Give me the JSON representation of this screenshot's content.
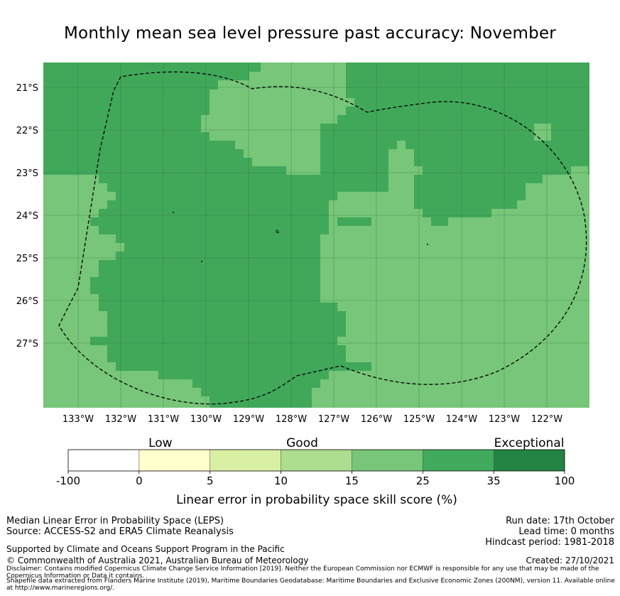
{
  "title": "Monthly mean sea level pressure past accuracy: November",
  "map": {
    "lat_labels": [
      "21°S",
      "22°S",
      "23°S",
      "24°S",
      "25°S",
      "26°S",
      "27°S"
    ],
    "lon_labels": [
      "133°W",
      "132°W",
      "131°W",
      "130°W",
      "129°W",
      "128°W",
      "127°W",
      "126°W",
      "125°W",
      "124°W",
      "123°W",
      "122°W"
    ],
    "colors": {
      "light_green": "#77c679",
      "medium_green": "#41a85a",
      "dark_green": "#228844",
      "boundary": "#000000"
    },
    "boundary_style": "dashed"
  },
  "colorbar": {
    "tick_labels": [
      "-100",
      "0",
      "5",
      "10",
      "15",
      "25",
      "35",
      "100"
    ],
    "category_labels": [
      "Low",
      "Good",
      "Exceptional"
    ],
    "colors": [
      "#ffffff",
      "#ffffcc",
      "#d9f0a3",
      "#addd8e",
      "#78c679",
      "#41ab5d",
      "#238443"
    ],
    "axis_title": "Linear error in probability space skill score (%)"
  },
  "footer": {
    "metric": "Median Linear Error in Probability Space (LEPS)",
    "source": "Source: ACCESS-S2 and ERA5 Climate Reanalysis",
    "run_date": "Run date: 17th October",
    "lead_time": "Lead time: 0 months",
    "hindcast": "Hindcast period: 1981-2018",
    "support": "Supported by Climate and Oceans Support Program in the Pacific",
    "copyright": "© Commonwealth of Australia 2021, Australian Bureau of Meteorology",
    "created": "Created: 27/10/2021",
    "disclaimer": "Disclaimer: Contains modified Copernicus Climate Change Service Information [2019]. Neither the European Commission nor ECMWF is responsible for any use that may be made of the Copernicus Information or Data it contains.",
    "shapefile": "Shapefile data extracted from Flanders Marine Institute (2019), Maritime Boundaries Geodatabase: Maritime Boundaries and Exclusive Economic Zones (200NM), version 11. Available online at http://www.marineregions.org/."
  }
}
